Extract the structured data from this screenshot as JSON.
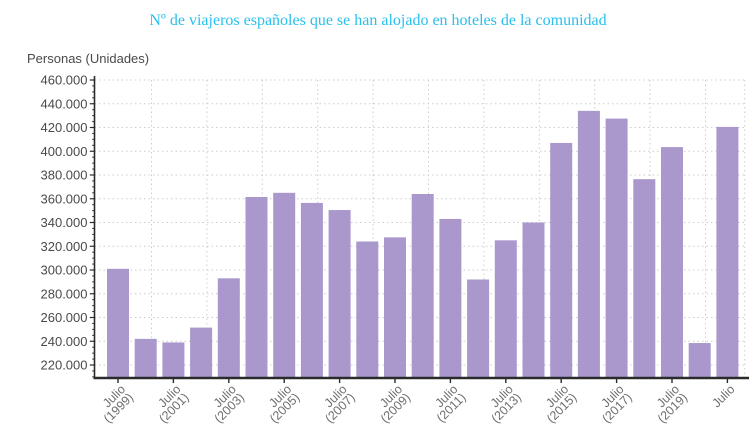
{
  "title": {
    "text": "Nº de viajeros españoles que se han alojado en hoteles de la comunidad",
    "color": "#28c0ee"
  },
  "chart_data": {
    "type": "bar",
    "title": "Nº de viajeros españoles que se han alojado en hoteles de la comunidad",
    "ylabel": "Personas (Unidades)",
    "xlabel": "",
    "categories": [
      "Julio (1999)",
      "Julio (2000)",
      "Julio (2001)",
      "Julio (2002)",
      "Julio (2003)",
      "Julio (2004)",
      "Julio (2005)",
      "Julio (2006)",
      "Julio (2007)",
      "Julio (2008)",
      "Julio (2009)",
      "Julio (2010)",
      "Julio (2011)",
      "Julio (2012)",
      "Julio (2013)",
      "Julio (2014)",
      "Julio (2015)",
      "Julio (2016)",
      "Julio (2017)",
      "Julio (2018)",
      "Julio (2019)",
      "Julio (2020)",
      "Julio (2021)"
    ],
    "values": [
      301000,
      242000,
      239000,
      251500,
      293000,
      361500,
      365000,
      356500,
      350500,
      324000,
      327500,
      364000,
      343000,
      292000,
      325000,
      340000,
      407000,
      434000,
      427500,
      376500,
      403500,
      238500,
      420500
    ],
    "x_tick_every": 2,
    "x_tick_labels": [
      {
        "line1": "Julio",
        "line2": "(1999)"
      },
      {
        "line1": "Julio",
        "line2": "(2001)"
      },
      {
        "line1": "Julio",
        "line2": "(2003)"
      },
      {
        "line1": "Julio",
        "line2": "(2005)"
      },
      {
        "line1": "Julio",
        "line2": "(2007)"
      },
      {
        "line1": "Julio",
        "line2": "(2009)"
      },
      {
        "line1": "Julio",
        "line2": "(2011)"
      },
      {
        "line1": "Julio",
        "line2": "(2013)"
      },
      {
        "line1": "Julio",
        "line2": "(2015)"
      },
      {
        "line1": "Julio",
        "line2": "(2017)"
      },
      {
        "line1": "Julio",
        "line2": "(2019)"
      },
      {
        "line1": "Julio",
        "line2": ""
      }
    ],
    "y_ticks": [
      220000,
      240000,
      260000,
      280000,
      300000,
      320000,
      340000,
      360000,
      380000,
      400000,
      420000,
      440000,
      460000
    ],
    "y_tick_labels": [
      "220.000",
      "240.000",
      "260.000",
      "280.000",
      "300.000",
      "320.000",
      "340.000",
      "360.000",
      "380.000",
      "400.000",
      "420.000",
      "440.000",
      "460.000"
    ],
    "ylim": [
      209000,
      466000
    ],
    "legend": "none",
    "grid": {
      "style": "dotted",
      "horizontal": true,
      "vertical": true,
      "color": "#cccccc"
    },
    "bar_color": "#aa98cd",
    "axis_color": "#2b2b2b",
    "y_tick_label_color": "#4a4a4a",
    "x_tick_label_color": "#6e6e6e"
  }
}
